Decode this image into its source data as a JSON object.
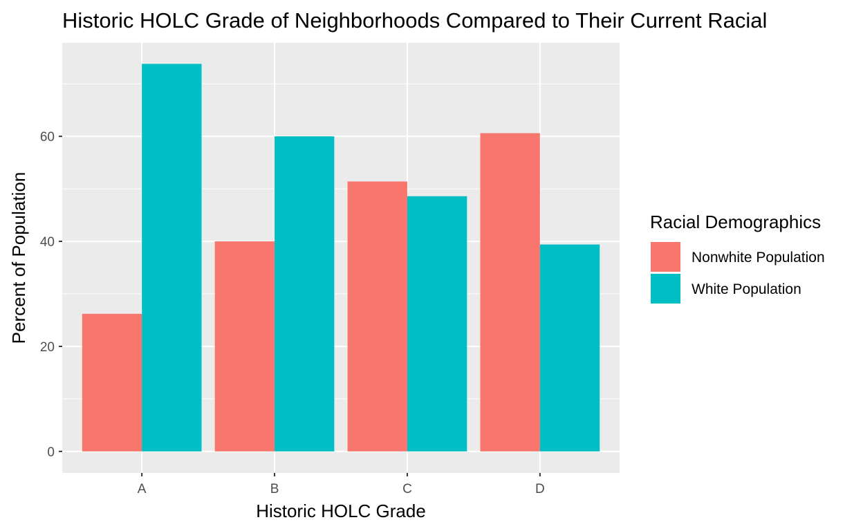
{
  "chart_data": {
    "type": "bar",
    "title": "Historic HOLC Grade of Neighborhoods Compared to Their Current Racial",
    "xlabel": "Historic HOLC Grade",
    "ylabel": "Percent of Population",
    "categories": [
      "A",
      "B",
      "C",
      "D"
    ],
    "series": [
      {
        "name": "Nonwhite Population",
        "color": "#F8766D",
        "values": [
          26.2,
          40.0,
          51.4,
          60.6
        ]
      },
      {
        "name": "White Population",
        "color": "#00BFC4",
        "values": [
          73.8,
          60.0,
          48.6,
          39.4
        ]
      }
    ],
    "ylim": [
      -4.1,
      77.8
    ],
    "yticks": [
      0,
      20,
      40,
      60
    ],
    "grid": true,
    "panel_background": "#EBEBEB",
    "grid_color": "#FFFFFF",
    "legend": {
      "title": "Racial Demographics",
      "position": "right"
    }
  }
}
